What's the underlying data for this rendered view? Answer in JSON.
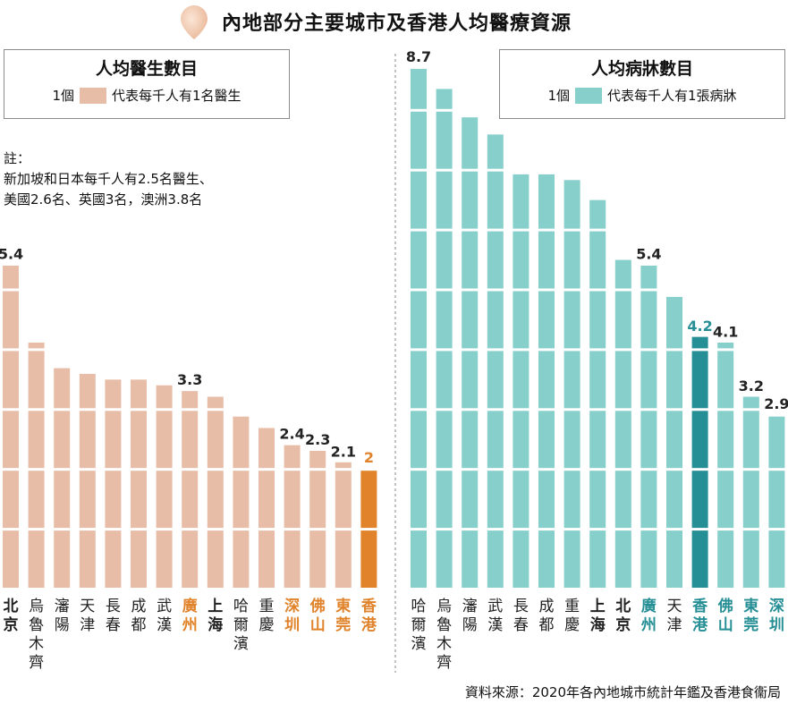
{
  "title": "內地部分主要城市及香港人均醫療資源",
  "legend_doctors": {
    "title": "人均醫生數目",
    "unit_count": "1個",
    "unit_desc": "代表每千人有1名醫生",
    "color": "#e8bda7"
  },
  "legend_beds": {
    "title": "人均病牀數目",
    "unit_count": "1個",
    "unit_desc": "代表每千人有1張病牀",
    "color": "#86cfcb"
  },
  "note": [
    "註：",
    "新加坡和日本每千人有2.5名醫生、",
    "美國2.6名、英國3名，澳洲3.8名"
  ],
  "source": "資料來源：2020年各內地城市統計年鑑及香港食衞局",
  "colors": {
    "doctor_bar": "#e8bda7",
    "doctor_hk": "#e0832a",
    "doctor_label_highlight": "#e0832a",
    "bed_bar": "#86cfcb",
    "bed_hk": "#268f95",
    "bed_label_highlight": "#268f95",
    "label_default": "#222222"
  },
  "chart_data": [
    {
      "type": "bar",
      "title": "人均醫生數目",
      "unit": "每千人醫生數目",
      "ylim": [
        0,
        5.4
      ],
      "categories": [
        "北京",
        "烏魯木齊",
        "瀋陽",
        "天津",
        "長春",
        "成都",
        "武漢",
        "廣州",
        "上海",
        "哈爾濱",
        "重慶",
        "深圳",
        "佛山",
        "東莞",
        "香港"
      ],
      "values": [
        5.4,
        4.1,
        3.7,
        3.6,
        3.5,
        3.5,
        3.4,
        3.3,
        3.2,
        2.9,
        2.7,
        2.4,
        2.3,
        2.1,
        2.0
      ],
      "value_labels": [
        "5.4",
        "",
        "",
        "",
        "",
        "",
        "",
        "3.3",
        "",
        "",
        "",
        "2.4",
        "2.3",
        "2.1",
        "2"
      ],
      "label_style": [
        "bold",
        "normal",
        "normal",
        "normal",
        "normal",
        "normal",
        "normal",
        "highlight",
        "bold",
        "normal",
        "normal",
        "highlight",
        "highlight",
        "highlight",
        "highlight"
      ],
      "highlight_bar": "香港"
    },
    {
      "type": "bar",
      "title": "人均病牀數目",
      "unit": "每千人病牀數目",
      "ylim": [
        0,
        8.7
      ],
      "categories": [
        "哈爾濱",
        "烏魯木齊",
        "瀋陽",
        "武漢",
        "長春",
        "成都",
        "重慶",
        "上海",
        "北京",
        "廣州",
        "天津",
        "香港",
        "佛山",
        "東莞",
        "深圳"
      ],
      "values": [
        8.7,
        8.35,
        7.9,
        7.6,
        6.95,
        6.95,
        6.85,
        6.5,
        5.5,
        5.4,
        4.9,
        4.2,
        4.1,
        3.2,
        2.9
      ],
      "value_labels": [
        "8.7",
        "",
        "",
        "",
        "",
        "",
        "",
        "",
        "",
        "5.4",
        "",
        "4.2",
        "4.1",
        "3.2",
        "2.9"
      ],
      "label_style": [
        "normal",
        "normal",
        "normal",
        "normal",
        "normal",
        "normal",
        "normal",
        "bold",
        "bold",
        "highlight",
        "normal",
        "highlight",
        "highlight",
        "highlight",
        "highlight"
      ],
      "highlight_bar": "香港"
    }
  ]
}
